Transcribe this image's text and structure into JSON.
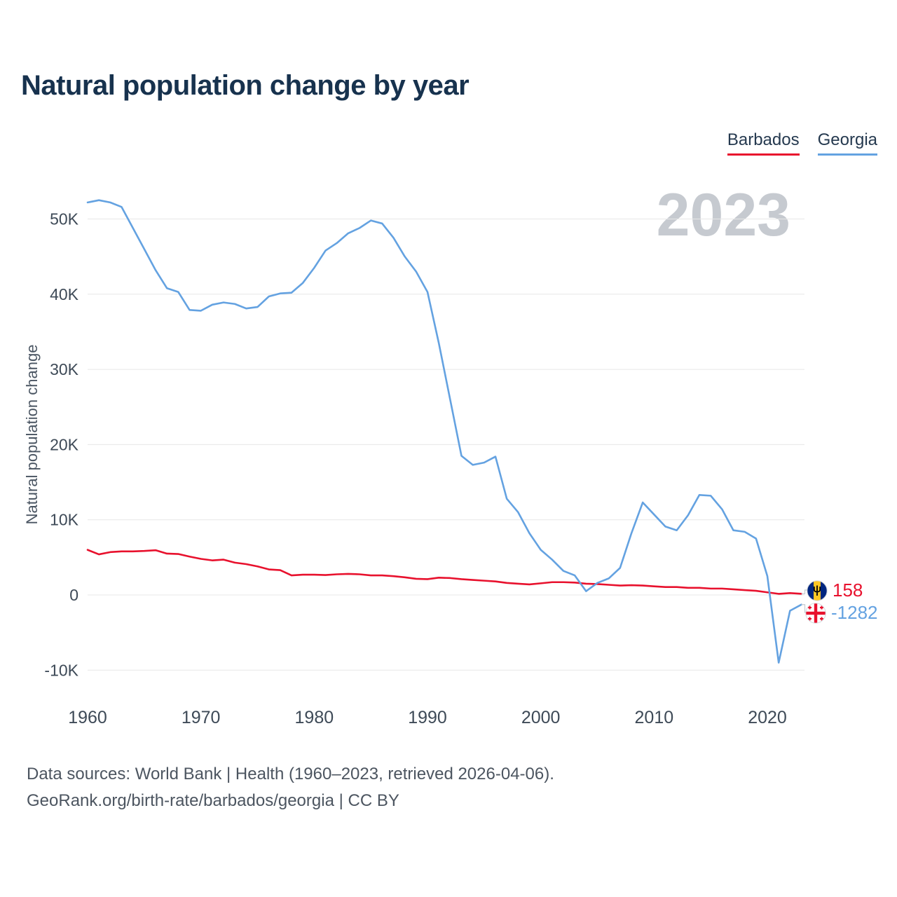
{
  "title": "Natural population change by year",
  "watermark": "2023",
  "legend": {
    "items": [
      {
        "label": "Barbados",
        "color": "#e8112d"
      },
      {
        "label": "Georgia",
        "color": "#64a2e1"
      }
    ]
  },
  "end_labels": [
    {
      "series": "Barbados",
      "value": "158",
      "color": "#e8112d",
      "flag": "barbados-flag-icon"
    },
    {
      "series": "Georgia",
      "value": "-1282",
      "color": "#64a2e1",
      "flag": "georgia-flag-icon"
    }
  ],
  "footer": {
    "sources": "Data sources: World Bank | Health (1960–2023, retrieved 2026-04-06).",
    "attribution": "GeoRank.org/birth-rate/barbados/georgia | CC BY"
  },
  "chart_data": {
    "type": "line",
    "title": "Natural population change by year",
    "xlabel": "",
    "ylabel": "Natural population change",
    "grid": true,
    "legend_position": "top-right",
    "ylim": [
      -14000,
      56000
    ],
    "yticks": [
      -10000,
      0,
      10000,
      20000,
      30000,
      40000,
      50000
    ],
    "ytick_labels": [
      "-10K",
      "0",
      "10K",
      "20K",
      "30K",
      "40K",
      "50K"
    ],
    "xticks": [
      1960,
      1970,
      1980,
      1990,
      2000,
      2010,
      2020
    ],
    "x": [
      1960,
      1961,
      1962,
      1963,
      1964,
      1965,
      1966,
      1967,
      1968,
      1969,
      1970,
      1971,
      1972,
      1973,
      1974,
      1975,
      1976,
      1977,
      1978,
      1979,
      1980,
      1981,
      1982,
      1983,
      1984,
      1985,
      1986,
      1987,
      1988,
      1989,
      1990,
      1991,
      1992,
      1993,
      1994,
      1995,
      1996,
      1997,
      1998,
      1999,
      2000,
      2001,
      2002,
      2003,
      2004,
      2005,
      2006,
      2007,
      2008,
      2009,
      2010,
      2011,
      2012,
      2013,
      2014,
      2015,
      2016,
      2017,
      2018,
      2019,
      2020,
      2021,
      2022,
      2023
    ],
    "series": [
      {
        "name": "Barbados",
        "color": "#e8112d",
        "values": [
          6000,
          5400,
          5700,
          5800,
          5800,
          5850,
          5950,
          5500,
          5450,
          5100,
          4800,
          4600,
          4700,
          4300,
          4100,
          3800,
          3400,
          3300,
          2600,
          2700,
          2700,
          2650,
          2750,
          2800,
          2750,
          2600,
          2600,
          2500,
          2350,
          2150,
          2100,
          2300,
          2250,
          2100,
          2000,
          1900,
          1800,
          1600,
          1500,
          1400,
          1550,
          1700,
          1700,
          1650,
          1500,
          1450,
          1350,
          1250,
          1300,
          1250,
          1150,
          1050,
          1050,
          950,
          950,
          850,
          850,
          750,
          650,
          550,
          350,
          150,
          250,
          158
        ]
      },
      {
        "name": "Georgia",
        "color": "#64a2e1",
        "values": [
          52200,
          52500,
          52200,
          51600,
          48800,
          46000,
          43200,
          40800,
          40300,
          37900,
          37800,
          38600,
          38900,
          38700,
          38100,
          38300,
          39700,
          40100,
          40200,
          41500,
          43500,
          45800,
          46800,
          48100,
          48800,
          49800,
          49400,
          47500,
          45000,
          43000,
          40300,
          33500,
          26000,
          18500,
          17300,
          17600,
          18400,
          12800,
          11000,
          8200,
          6000,
          4700,
          3200,
          2600,
          500,
          1600,
          2200,
          3600,
          8200,
          12300,
          10700,
          9100,
          8600,
          10600,
          13300,
          13200,
          11400,
          8600,
          8400,
          7500,
          2500,
          -9000,
          -2100,
          -1282
        ]
      }
    ]
  }
}
